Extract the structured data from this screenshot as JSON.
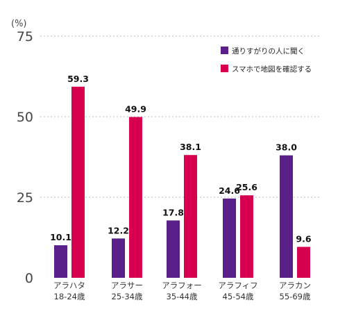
{
  "chart_data": {
    "type": "bar",
    "unit_label": "(%)",
    "ylim": [
      0,
      75
    ],
    "yticks": [
      "75",
      "50",
      "25",
      "0"
    ],
    "grid": "dotted horizontal",
    "legend_position": "top-right",
    "categories": [
      [
        "アラハタ",
        "18-24歳"
      ],
      [
        "アラサー",
        "25-34歳"
      ],
      [
        "アラフォー",
        "35-44歳"
      ],
      [
        "アラフィフ",
        "45-54歳"
      ],
      [
        "アラカン",
        "55-69歳"
      ]
    ],
    "series": [
      {
        "name": "通りすがりの人に聞く",
        "color": "#5b1f8a",
        "values": [
          10.1,
          12.2,
          17.8,
          24.6,
          38.0
        ]
      },
      {
        "name": "スマホで地図を確認する",
        "color": "#d6004f",
        "values": [
          59.3,
          49.9,
          38.1,
          25.6,
          9.6
        ]
      }
    ]
  }
}
